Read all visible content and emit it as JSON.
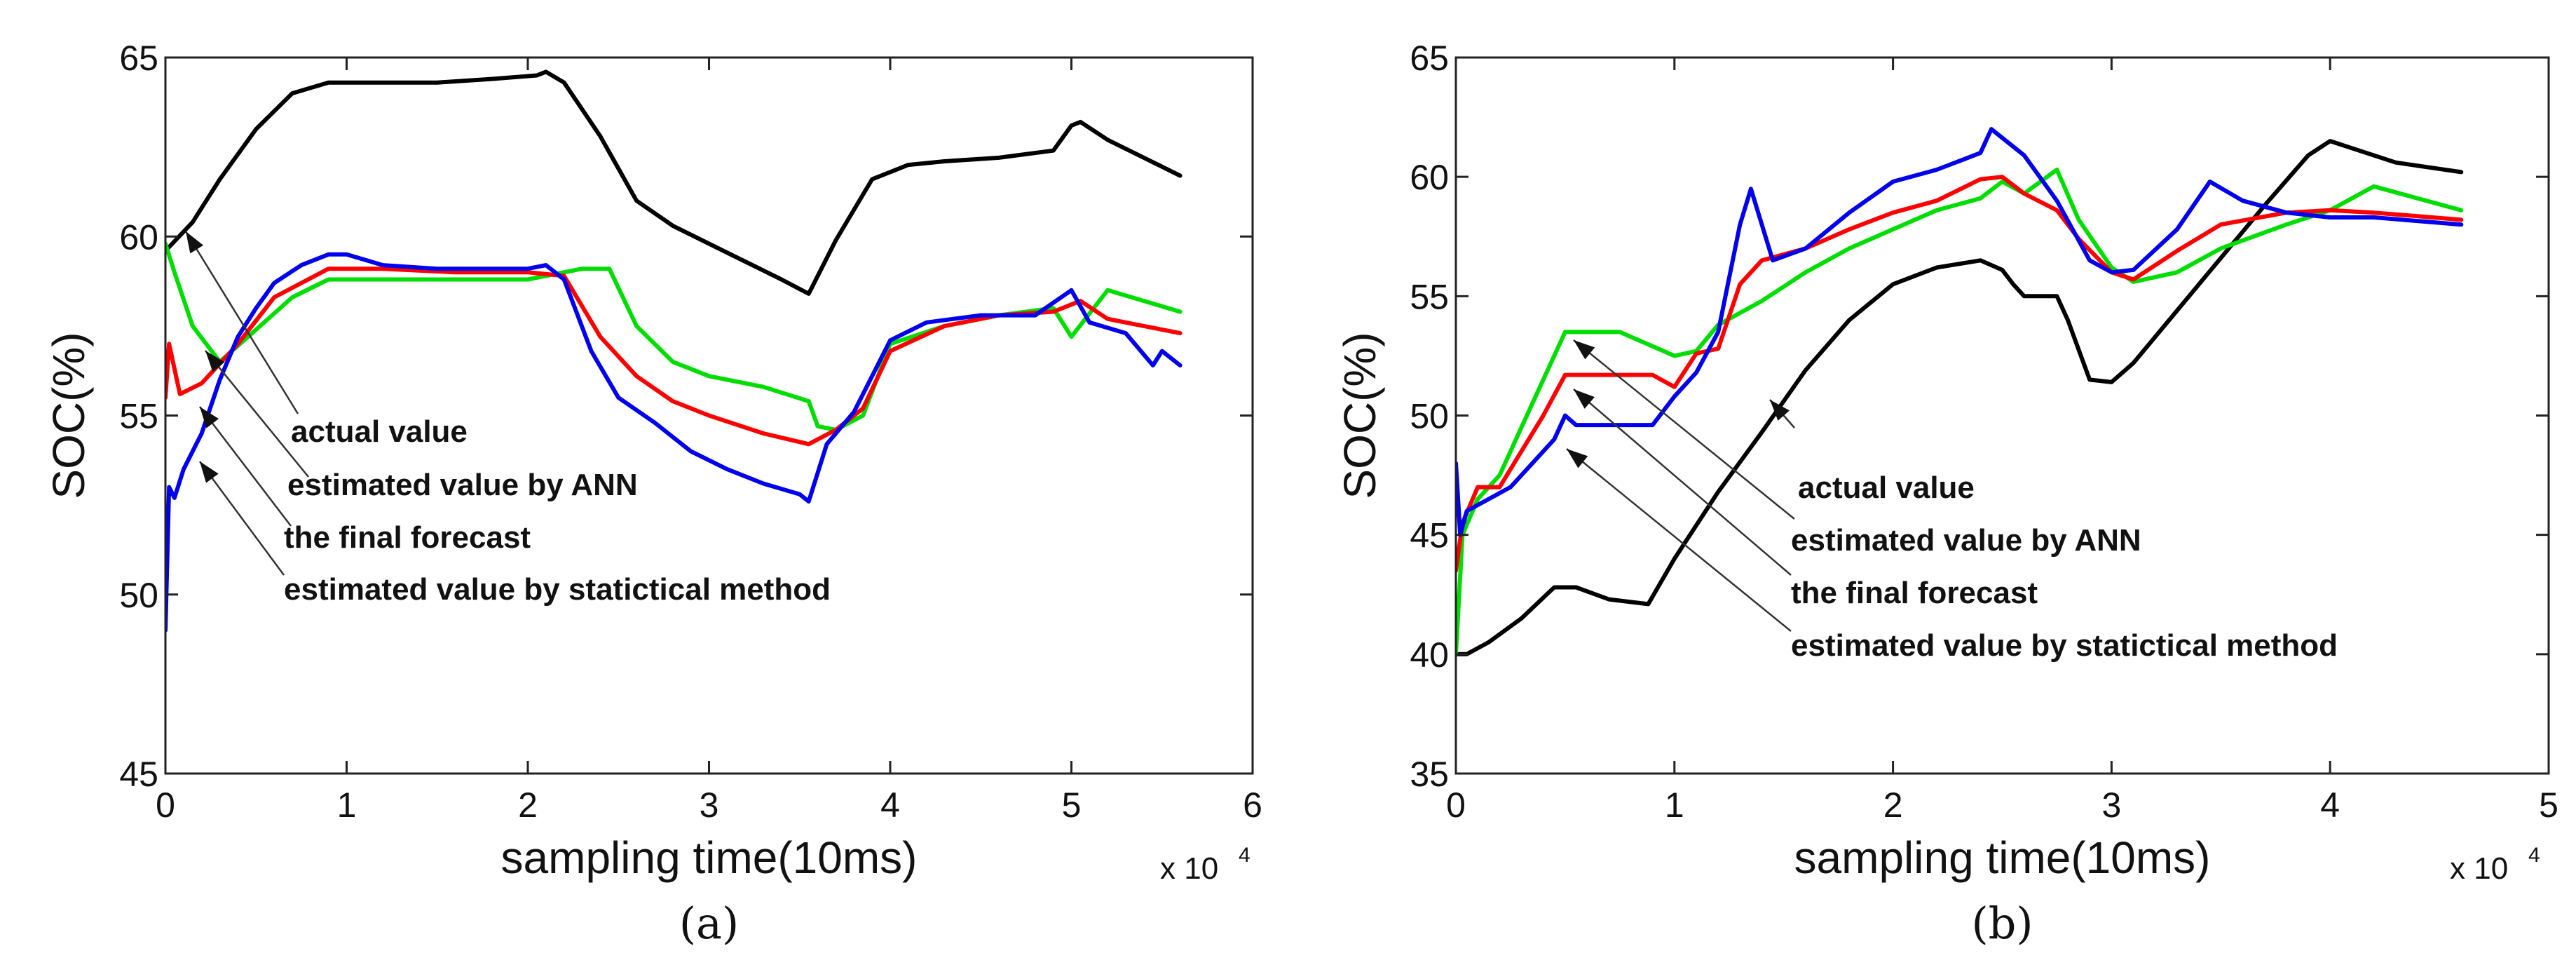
{
  "chart_data": [
    {
      "type": "line",
      "panel_label": "(a)",
      "xlabel": "sampling time(10ms)",
      "ylabel": "SOC(%)",
      "x_multiplier": "x 10",
      "x_multiplier_exp": "4",
      "xlim": [
        0,
        6
      ],
      "ylim": [
        45,
        65
      ],
      "xticks": [
        0,
        1,
        2,
        3,
        4,
        5,
        6
      ],
      "yticks": [
        45,
        50,
        55,
        60,
        65
      ],
      "grid": false,
      "series": [
        {
          "name": "actual value",
          "color": "#000000",
          "x": [
            0,
            0.15,
            0.3,
            0.5,
            0.7,
            0.9,
            1.2,
            1.5,
            1.8,
            2.05,
            2.1,
            2.2,
            2.4,
            2.6,
            2.8,
            3.0,
            3.2,
            3.4,
            3.55,
            3.7,
            3.9,
            4.1,
            4.3,
            4.6,
            4.9,
            5.0,
            5.05,
            5.2,
            5.4,
            5.6
          ],
          "y": [
            59.6,
            60.4,
            61.6,
            63.0,
            64.0,
            64.3,
            64.3,
            64.3,
            64.4,
            64.5,
            64.6,
            64.3,
            62.8,
            61.0,
            60.3,
            59.8,
            59.3,
            58.8,
            58.4,
            59.9,
            61.6,
            62.0,
            62.1,
            62.2,
            62.4,
            63.1,
            63.2,
            62.7,
            62.2,
            61.7
          ]
        },
        {
          "name": "estimated value by ANN",
          "color": "#00dd00",
          "x": [
            0,
            0.05,
            0.15,
            0.3,
            0.5,
            0.7,
            0.9,
            1.1,
            1.5,
            2.0,
            2.3,
            2.45,
            2.6,
            2.8,
            3.0,
            3.3,
            3.55,
            3.6,
            3.7,
            3.85,
            4.0,
            4.3,
            4.6,
            4.9,
            5.0,
            5.2,
            5.4,
            5.6
          ],
          "y": [
            59.8,
            59.0,
            57.5,
            56.5,
            57.4,
            58.3,
            58.8,
            58.8,
            58.8,
            58.8,
            59.1,
            59.1,
            57.5,
            56.5,
            56.1,
            55.8,
            55.4,
            54.7,
            54.6,
            55.0,
            57.0,
            57.5,
            57.8,
            58.0,
            57.2,
            58.5,
            58.2,
            57.9
          ]
        },
        {
          "name": "the final forecast",
          "color": "#ff0000",
          "x": [
            0,
            0.02,
            0.08,
            0.2,
            0.4,
            0.6,
            0.9,
            1.2,
            1.6,
            2.0,
            2.2,
            2.4,
            2.6,
            2.8,
            3.0,
            3.3,
            3.55,
            3.7,
            3.85,
            4.0,
            4.3,
            4.6,
            4.9,
            5.05,
            5.2,
            5.4,
            5.6
          ],
          "y": [
            55.5,
            57.0,
            55.6,
            55.9,
            57.0,
            58.3,
            59.1,
            59.1,
            59.0,
            59.0,
            58.9,
            57.2,
            56.1,
            55.4,
            55.0,
            54.5,
            54.2,
            54.6,
            55.2,
            56.8,
            57.5,
            57.8,
            57.9,
            58.2,
            57.7,
            57.5,
            57.3
          ]
        },
        {
          "name": "estimated value by statictical method",
          "color": "#0000ee",
          "x": [
            0,
            0.02,
            0.05,
            0.1,
            0.2,
            0.3,
            0.4,
            0.5,
            0.6,
            0.75,
            0.9,
            1.0,
            1.2,
            1.5,
            1.8,
            2.0,
            2.1,
            2.2,
            2.35,
            2.5,
            2.7,
            2.9,
            3.1,
            3.3,
            3.5,
            3.55,
            3.65,
            3.8,
            4.0,
            4.2,
            4.5,
            4.8,
            5.0,
            5.1,
            5.3,
            5.45,
            5.5,
            5.6
          ],
          "y": [
            49.0,
            53.0,
            52.7,
            53.5,
            54.5,
            56.0,
            57.2,
            58.0,
            58.7,
            59.2,
            59.5,
            59.5,
            59.2,
            59.1,
            59.1,
            59.1,
            59.2,
            58.8,
            56.8,
            55.5,
            54.8,
            54.0,
            53.5,
            53.1,
            52.8,
            52.6,
            54.2,
            55.1,
            57.1,
            57.6,
            57.8,
            57.8,
            58.5,
            57.6,
            57.3,
            56.4,
            56.8,
            56.4
          ]
        }
      ],
      "annotations": [
        {
          "text": "actual value",
          "series": "actual value"
        },
        {
          "text": "estimated value by ANN",
          "series": "estimated value by ANN"
        },
        {
          "text": "the final forecast",
          "series": "the final forecast"
        },
        {
          "text": "estimated value by statictical method",
          "series": "estimated value by statictical method"
        }
      ]
    },
    {
      "type": "line",
      "panel_label": "(b)",
      "xlabel": "sampling time(10ms)",
      "ylabel": "SOC(%)",
      "x_multiplier": "x 10",
      "x_multiplier_exp": "4",
      "xlim": [
        0,
        5
      ],
      "ylim": [
        35,
        65
      ],
      "xticks": [
        0,
        1,
        2,
        3,
        4,
        5
      ],
      "yticks": [
        35,
        40,
        45,
        50,
        55,
        60,
        65
      ],
      "grid": false,
      "series": [
        {
          "name": "actual value",
          "color": "#000000",
          "x": [
            0,
            0.05,
            0.15,
            0.3,
            0.45,
            0.55,
            0.7,
            0.88,
            1.0,
            1.2,
            1.4,
            1.6,
            1.8,
            2.0,
            2.2,
            2.4,
            2.5,
            2.55,
            2.6,
            2.75,
            2.8,
            2.9,
            3.0,
            3.1,
            3.3,
            3.5,
            3.7,
            3.9,
            4.0,
            4.3,
            4.6
          ],
          "y": [
            40.0,
            40.0,
            40.5,
            41.5,
            42.8,
            42.8,
            42.3,
            42.1,
            44.0,
            46.8,
            49.3,
            51.9,
            54.0,
            55.5,
            56.2,
            56.5,
            56.1,
            55.5,
            55.0,
            55.0,
            54.0,
            51.5,
            51.4,
            52.2,
            54.4,
            56.6,
            58.8,
            60.9,
            61.5,
            60.6,
            60.2
          ]
        },
        {
          "name": "estimated value by ANN",
          "color": "#00dd00",
          "x": [
            0,
            0.03,
            0.1,
            0.2,
            0.3,
            0.4,
            0.5,
            0.55,
            0.75,
            1.0,
            1.1,
            1.2,
            1.4,
            1.6,
            1.8,
            2.0,
            2.2,
            2.4,
            2.5,
            2.6,
            2.75,
            2.85,
            3.0,
            3.1,
            3.3,
            3.5,
            3.8,
            4.0,
            4.2,
            4.6
          ],
          "y": [
            40.0,
            45.0,
            46.5,
            47.5,
            49.5,
            51.5,
            53.5,
            53.5,
            53.5,
            52.5,
            52.7,
            53.8,
            54.8,
            56.0,
            57.0,
            57.8,
            58.6,
            59.1,
            59.8,
            59.3,
            60.3,
            58.2,
            56.2,
            55.6,
            56.0,
            57.0,
            58.0,
            58.6,
            59.6,
            58.6
          ]
        },
        {
          "name": "the final forecast",
          "color": "#ff0000",
          "x": [
            0,
            0.03,
            0.1,
            0.2,
            0.3,
            0.4,
            0.5,
            0.55,
            0.7,
            0.9,
            1.0,
            1.1,
            1.2,
            1.3,
            1.4,
            1.6,
            1.8,
            2.0,
            2.2,
            2.4,
            2.5,
            2.6,
            2.75,
            2.85,
            3.0,
            3.1,
            3.3,
            3.5,
            3.8,
            4.0,
            4.2,
            4.6
          ],
          "y": [
            43.5,
            45.5,
            47.0,
            47.0,
            48.5,
            50.0,
            51.7,
            51.7,
            51.7,
            51.7,
            51.2,
            52.6,
            52.8,
            55.5,
            56.5,
            57.0,
            57.8,
            58.5,
            59.0,
            59.9,
            60.0,
            59.3,
            58.6,
            57.4,
            56.0,
            55.7,
            56.9,
            58.0,
            58.5,
            58.6,
            58.5,
            58.2
          ]
        },
        {
          "name": "estimated value by statictical method",
          "color": "#0000ee",
          "x": [
            0,
            0.02,
            0.05,
            0.15,
            0.25,
            0.35,
            0.45,
            0.5,
            0.55,
            0.75,
            0.9,
            1.0,
            1.1,
            1.2,
            1.3,
            1.35,
            1.45,
            1.6,
            1.8,
            2.0,
            2.2,
            2.4,
            2.45,
            2.6,
            2.75,
            2.9,
            3.0,
            3.1,
            3.3,
            3.45,
            3.6,
            3.8,
            4.0,
            4.2,
            4.6
          ],
          "y": [
            48.0,
            45.0,
            46.0,
            46.5,
            47.0,
            48.0,
            49.0,
            50.0,
            49.6,
            49.6,
            49.6,
            50.8,
            51.8,
            53.5,
            58.0,
            59.5,
            56.5,
            57.0,
            58.5,
            59.8,
            60.3,
            61.0,
            62.0,
            60.9,
            59.0,
            56.5,
            56.0,
            56.1,
            57.8,
            59.8,
            59.0,
            58.5,
            58.3,
            58.3,
            58.0
          ]
        }
      ],
      "annotations": [
        {
          "text": "actual value",
          "series": "actual value"
        },
        {
          "text": "estimated value by ANN",
          "series": "estimated value by ANN"
        },
        {
          "text": "the final forecast",
          "series": "the final forecast"
        },
        {
          "text": "estimated value by statictical method",
          "series": "estimated value by statictical method"
        }
      ]
    }
  ]
}
